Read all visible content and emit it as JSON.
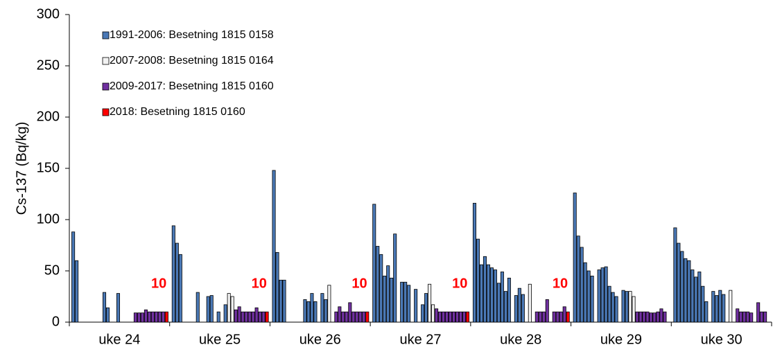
{
  "chart_data": {
    "type": "bar",
    "y_label": "Cs-137 (Bq/kg)",
    "categories": [
      "uke 24",
      "uke 25",
      "uke 26",
      "uke 27",
      "uke 28",
      "uke 29",
      "uke 30"
    ],
    "ylim": [
      0,
      300
    ],
    "yticks": [
      0,
      50,
      100,
      150,
      200,
      250,
      300
    ],
    "legend": "upper left",
    "series": [
      {
        "name": "1991-2006: Besetning 1815 0158",
        "color": "#4a78b5",
        "values": [
          [
            88,
            60,
            null,
            null,
            null,
            null,
            null,
            null,
            null,
            29,
            14,
            null,
            null,
            28,
            null,
            null
          ],
          [
            94,
            77,
            66,
            null,
            null,
            null,
            null,
            29,
            null,
            null,
            25,
            26,
            null,
            10,
            null,
            17
          ],
          [
            148,
            68,
            41,
            41,
            null,
            null,
            null,
            null,
            null,
            22,
            20,
            28,
            20,
            null,
            28,
            22
          ],
          [
            115,
            74,
            66,
            45,
            55,
            43,
            86,
            null,
            39,
            39,
            36,
            null,
            32,
            null,
            17,
            28
          ],
          [
            116,
            81,
            56,
            64,
            56,
            53,
            51,
            38,
            49,
            30,
            43,
            null,
            26,
            33,
            27,
            null
          ],
          [
            126,
            84,
            73,
            58,
            50,
            45,
            null,
            51,
            53,
            54,
            35,
            29,
            25,
            null,
            31,
            30
          ],
          [
            92,
            77,
            69,
            62,
            60,
            51,
            44,
            49,
            35,
            20,
            null,
            30,
            26,
            31,
            27,
            null
          ]
        ]
      },
      {
        "name": "2007-2008: Besetning 1815 0164",
        "color": "#f2f2f2",
        "values": [
          [
            null,
            null
          ],
          [
            28,
            25
          ],
          [
            36,
            null
          ],
          [
            37,
            17
          ],
          [
            37,
            null
          ],
          [
            30,
            25
          ],
          [
            31,
            null
          ]
        ]
      },
      {
        "name": "2009-2017: Besetning 1815 0160",
        "color": "#7030a0",
        "values": [
          [
            9,
            9,
            9,
            12,
            10,
            10,
            10,
            10,
            10
          ],
          [
            12,
            15,
            10,
            10,
            10,
            10,
            14,
            10,
            10
          ],
          [
            10,
            15,
            10,
            10,
            19,
            10,
            10,
            10,
            10
          ],
          [
            13,
            10,
            10,
            10,
            10,
            10,
            10,
            10,
            10
          ],
          [
            10,
            10,
            10,
            22,
            null,
            10,
            10,
            10,
            15
          ],
          [
            10,
            10,
            10,
            10,
            9,
            9,
            10,
            13,
            10
          ],
          [
            13,
            10,
            10,
            10,
            9,
            null,
            19,
            10,
            10
          ]
        ]
      },
      {
        "name": "2018: Besetning 1815 0160",
        "color": "#ff0000",
        "values": [
          [
            10
          ],
          [
            10
          ],
          [
            10
          ],
          [
            10
          ],
          [
            10
          ],
          [
            null
          ],
          [
            null
          ]
        ]
      }
    ]
  }
}
